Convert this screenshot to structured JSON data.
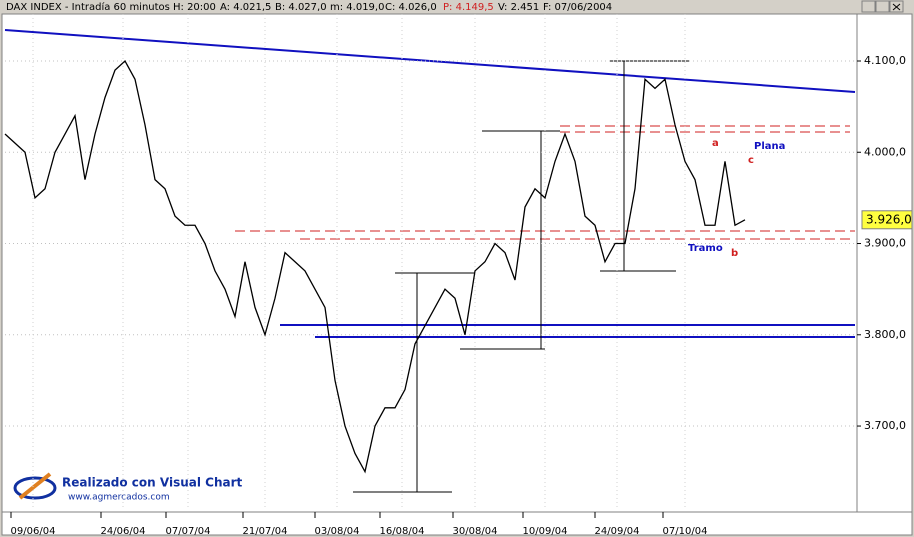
{
  "chart_data": {
    "type": "line",
    "title": "DAX INDEX - Intradía 60 minutos",
    "info": [
      "H: 20:00",
      "A: 4.021,5",
      "B: 4.027,0",
      "m: 4.019,0",
      "C: 4.026,0",
      "P: 4.149,5",
      "V: 2.451",
      "F: 07/06/2004"
    ],
    "color": "#000000",
    "values": [
      4020,
      4010,
      4000,
      3950,
      3960,
      4000,
      4020,
      4040,
      3970,
      4020,
      4060,
      4090,
      4100,
      4080,
      4030,
      3970,
      3960,
      3930,
      3920,
      3920,
      3900,
      3870,
      3850,
      3820,
      3880,
      3830,
      3800,
      3840,
      3890,
      3880,
      3870,
      3850,
      3830,
      3750,
      3700,
      3670,
      3650,
      3700,
      3720,
      3720,
      3740,
      3790,
      3810,
      3830,
      3850,
      3840,
      3800,
      3870,
      3880,
      3900,
      3890,
      3860,
      3940,
      3960,
      3950,
      3990,
      4020,
      3990,
      3930,
      3920,
      3880,
      3900,
      3900,
      3960,
      4080,
      4070,
      4080,
      4030,
      3990,
      3970,
      3920,
      3920,
      3990,
      3920,
      3926
    ],
    "xlim": [
      0,
      85
    ],
    "xticks": [
      {
        "value": 2.8,
        "label": "09/06/04"
      },
      {
        "value": 11.8,
        "label": "24/06/04"
      },
      {
        "value": 18.3,
        "label": "07/07/04"
      },
      {
        "value": 26,
        "label": "21/07/04"
      },
      {
        "value": 33.2,
        "label": "03/08/04"
      },
      {
        "value": 39.7,
        "label": "16/08/04"
      },
      {
        "value": 47,
        "label": "30/08/04"
      },
      {
        "value": 54,
        "label": "10/09/04"
      },
      {
        "value": 61.2,
        "label": "24/09/04"
      },
      {
        "value": 68,
        "label": "07/10/04"
      }
    ],
    "ylim": [
      3608,
      4151.5
    ],
    "yticks": [
      {
        "value": 3700,
        "label": "3.700,0"
      },
      {
        "value": 3800,
        "label": "3.800,0"
      },
      {
        "value": 3900,
        "label": "3.900,0"
      },
      {
        "value": 4000,
        "label": "4.000,0"
      },
      {
        "value": 4100,
        "label": "4.100,0"
      }
    ],
    "last_value": {
      "value": 3926,
      "label": "3.926,0"
    },
    "grid": true,
    "annotations": [
      "a",
      "b",
      "c",
      "Plana",
      "Tramo"
    ],
    "logo": [
      "Realizado con Visual Chart",
      "www.agmercados.com"
    ]
  }
}
